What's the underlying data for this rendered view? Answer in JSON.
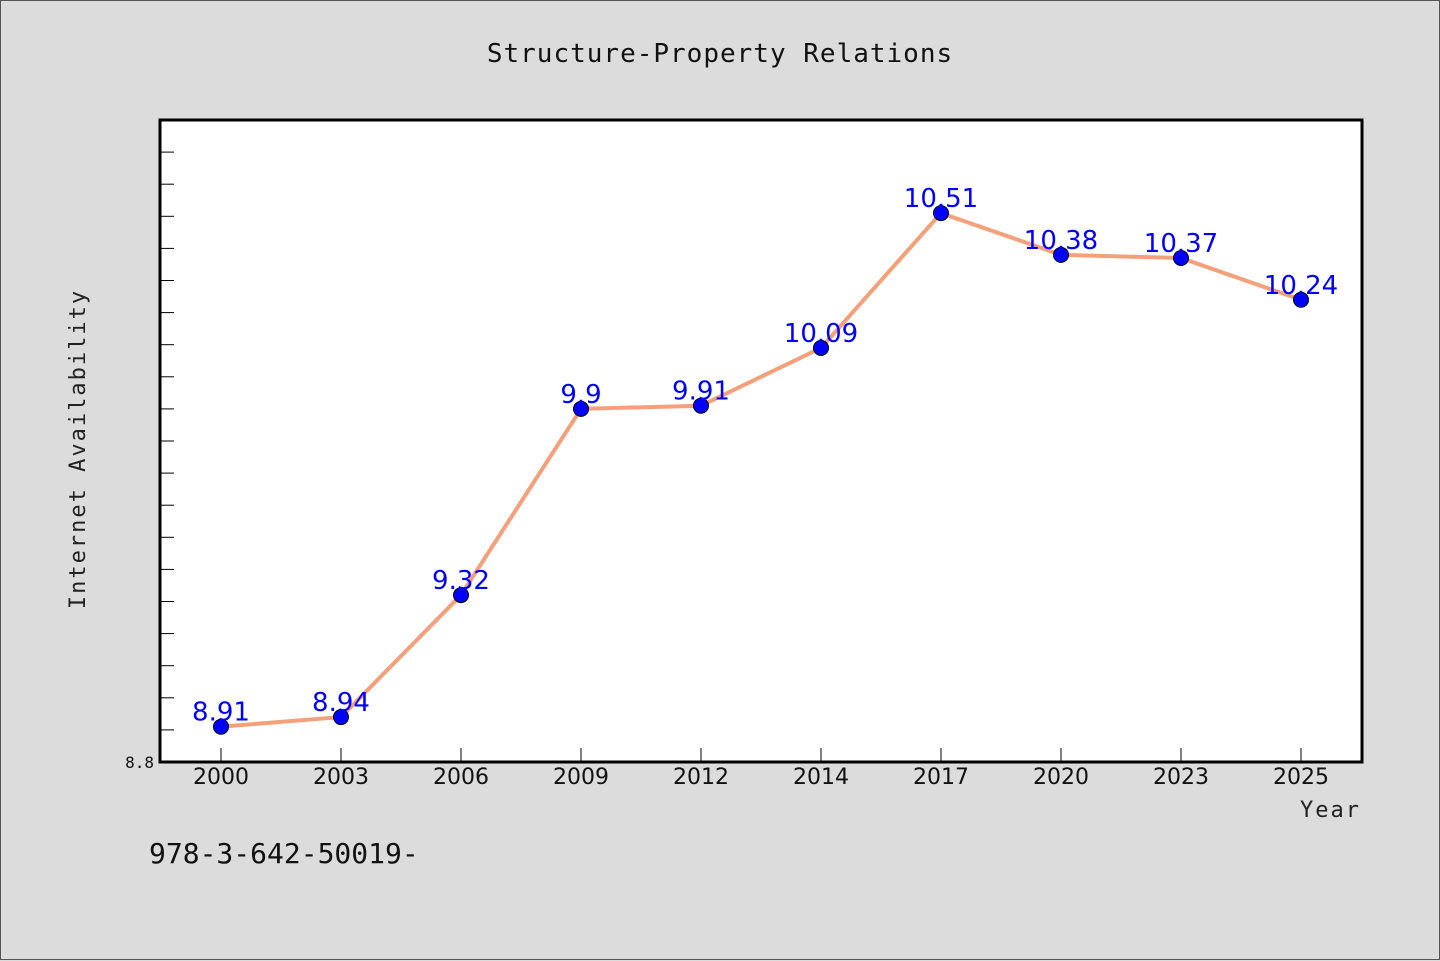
{
  "footnote": "978-3-642-50019-",
  "colors": {
    "line": "#f4a07a",
    "marker": "#0000ff",
    "label": "#0000ff",
    "background": "#dcdcdc",
    "plot_background": "#ffffff"
  },
  "chart_data": {
    "type": "line",
    "title": "Structure-Property Relations",
    "xlabel": "Year",
    "ylabel": "Internet Availability",
    "categories": [
      "2000",
      "2003",
      "2006",
      "2009",
      "2012",
      "2014",
      "2017",
      "2020",
      "2023",
      "2025"
    ],
    "series": [
      {
        "values": [
          8.91,
          8.94,
          9.32,
          9.9,
          9.91,
          10.09,
          10.51,
          10.38,
          10.37,
          10.24
        ],
        "labels": [
          "8.91",
          "8.94",
          "9.32",
          "9.9",
          "9.91",
          "10.09",
          "10.51",
          "10.38",
          "10.37",
          "10.24"
        ]
      }
    ],
    "ylim": [
      8.8,
      10.8
    ],
    "ytick_labels": [
      "8.8"
    ],
    "grid": false,
    "legend": "none"
  }
}
